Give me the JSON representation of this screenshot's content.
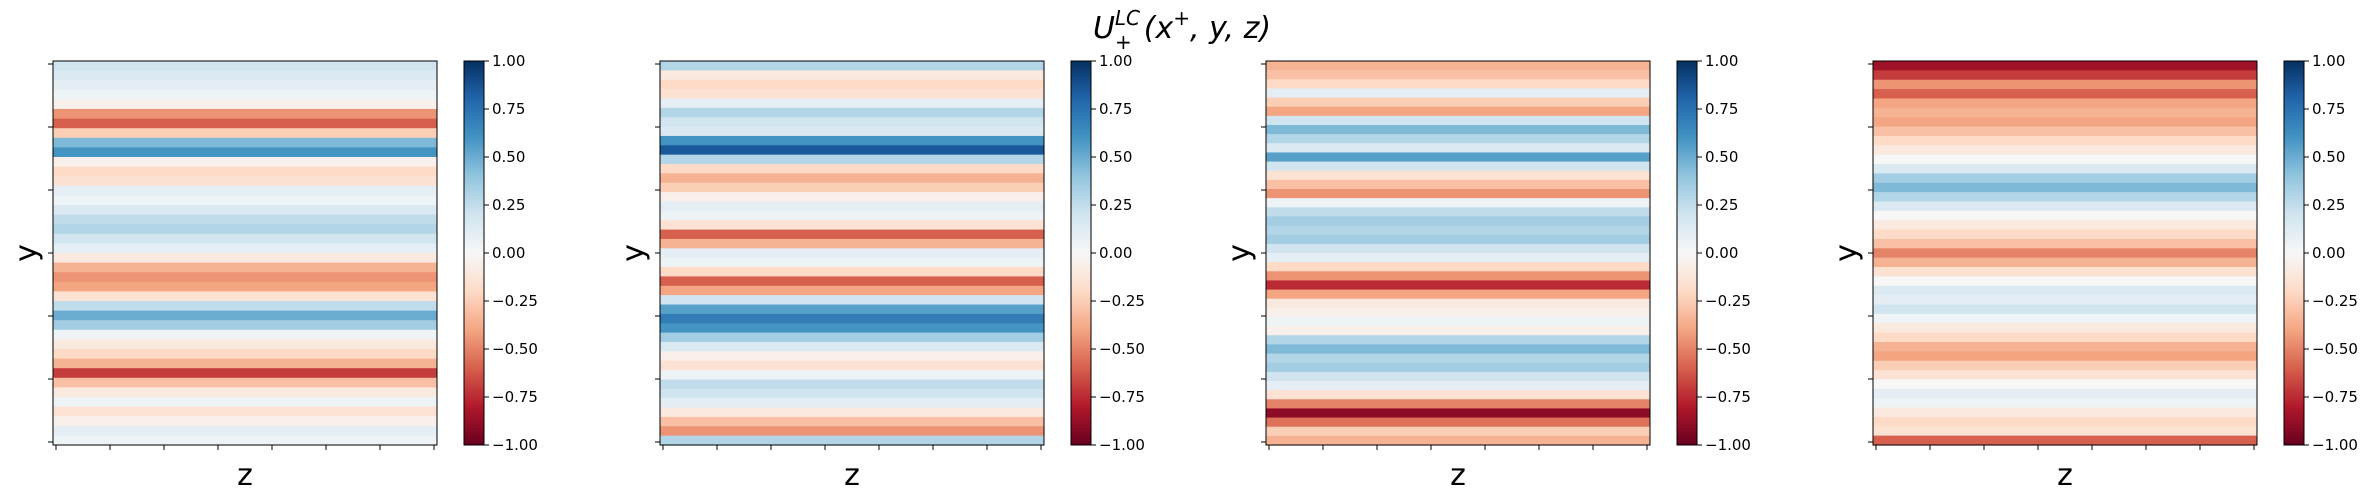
{
  "figure": {
    "title_main": "U",
    "title_sup": "LC",
    "title_sub": "+",
    "title_args": "(x",
    "title_args_sup": "+",
    "title_args_tail": ", y, z)"
  },
  "colormap": {
    "name": "RdBu",
    "stops": [
      "#67001f",
      "#b2182b",
      "#d6604d",
      "#f4a582",
      "#fddbc7",
      "#f7f7f7",
      "#d1e5f0",
      "#92c5de",
      "#4393c3",
      "#2166ac",
      "#053061"
    ]
  },
  "chart_data": [
    {
      "type": "heatmap",
      "xlabel": "z",
      "ylabel": "y",
      "colorbar_range": [
        -1.0,
        1.0
      ],
      "colorbar_ticks": [
        "1.00",
        "0.75",
        "0.50",
        "0.25",
        "0.00",
        "−0.25",
        "−0.50",
        "−0.75",
        "−1.00"
      ],
      "x_tick_count": 8,
      "y_tick_count": 7,
      "y_profile": [
        0.2,
        0.15,
        0.1,
        0.05,
        -0.05,
        -0.45,
        -0.6,
        -0.25,
        0.45,
        0.6,
        -0.05,
        -0.2,
        -0.15,
        0.1,
        0.05,
        0.15,
        0.25,
        0.3,
        0.2,
        0.1,
        -0.1,
        -0.35,
        -0.45,
        -0.4,
        -0.15,
        0.25,
        0.5,
        0.35,
        0.05,
        -0.1,
        -0.2,
        -0.35,
        -0.7,
        -0.3,
        -0.1,
        0.05,
        -0.15,
        -0.05,
        0.1,
        0.05
      ]
    },
    {
      "type": "heatmap",
      "xlabel": "z",
      "ylabel": "y",
      "colorbar_range": [
        -1.0,
        1.0
      ],
      "colorbar_ticks": [
        "1.00",
        "0.75",
        "0.50",
        "0.25",
        "0.00",
        "−0.25",
        "−0.50",
        "−0.75",
        "−1.00"
      ],
      "x_tick_count": 8,
      "y_tick_count": 7,
      "y_profile": [
        0.3,
        -0.1,
        -0.2,
        -0.15,
        0.1,
        0.3,
        0.2,
        0.15,
        0.6,
        0.85,
        0.3,
        -0.2,
        -0.35,
        -0.25,
        -0.05,
        0.1,
        0.05,
        -0.15,
        -0.6,
        -0.35,
        0.1,
        0.05,
        -0.2,
        -0.6,
        -0.4,
        0.2,
        0.55,
        0.7,
        0.6,
        0.35,
        0.15,
        -0.05,
        -0.15,
        0.05,
        0.25,
        0.2,
        0.1,
        -0.1,
        -0.3,
        -0.45,
        0.3
      ]
    },
    {
      "type": "heatmap",
      "xlabel": "z",
      "ylabel": "y",
      "colorbar_range": [
        -1.0,
        1.0
      ],
      "colorbar_ticks": [
        "1.00",
        "0.75",
        "0.50",
        "0.25",
        "0.00",
        "−0.25",
        "−0.50",
        "−0.75",
        "−1.00"
      ],
      "x_tick_count": 8,
      "y_tick_count": 7,
      "y_profile": [
        -0.35,
        -0.3,
        -0.2,
        0.1,
        -0.25,
        -0.4,
        0.2,
        0.45,
        0.3,
        0.15,
        0.55,
        0.2,
        -0.15,
        -0.3,
        -0.45,
        0.05,
        0.25,
        0.35,
        0.3,
        0.35,
        0.2,
        0.1,
        -0.2,
        -0.45,
        -0.75,
        -0.4,
        -0.1,
        -0.05,
        0.05,
        -0.05,
        0.3,
        0.45,
        0.3,
        0.35,
        0.2,
        0.1,
        -0.15,
        -0.5,
        -0.9,
        -0.55,
        -0.25,
        -0.35
      ]
    },
    {
      "type": "heatmap",
      "xlabel": "z",
      "ylabel": "y",
      "colorbar_range": [
        -1.0,
        1.0
      ],
      "colorbar_ticks": [
        "1.00",
        "0.75",
        "0.50",
        "0.25",
        "0.00",
        "−0.25",
        "−0.50",
        "−0.75",
        "−1.00"
      ],
      "x_tick_count": 8,
      "y_tick_count": 7,
      "y_profile": [
        -0.85,
        -0.7,
        -0.45,
        -0.6,
        -0.4,
        -0.35,
        -0.4,
        -0.3,
        -0.2,
        -0.1,
        0.0,
        0.15,
        0.35,
        0.45,
        0.3,
        0.15,
        0.0,
        -0.1,
        -0.2,
        -0.3,
        -0.5,
        -0.35,
        -0.15,
        0.0,
        0.15,
        0.1,
        0.2,
        0.05,
        -0.1,
        -0.2,
        -0.35,
        -0.4,
        -0.25,
        -0.15,
        0.0,
        0.1,
        0.05,
        -0.1,
        -0.2,
        -0.15,
        -0.6
      ]
    }
  ]
}
